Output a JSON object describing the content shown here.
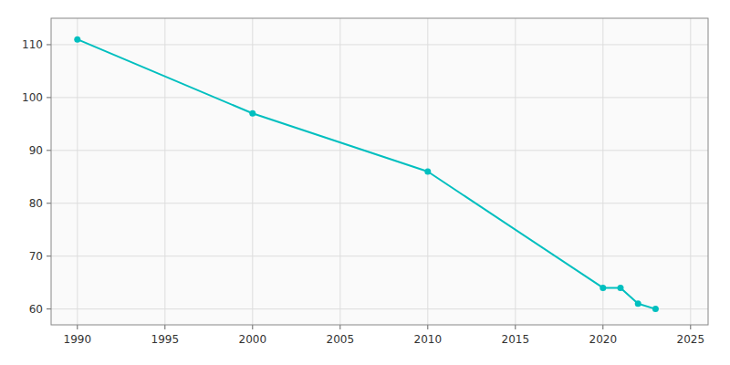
{
  "chart_data": {
    "type": "line",
    "x": [
      1990,
      2000,
      2010,
      2020,
      2021,
      2022,
      2023
    ],
    "values": [
      111,
      97,
      86,
      64,
      64,
      61,
      60
    ],
    "color": "#00BFBF",
    "marker": "circle",
    "xlim": [
      1988.5,
      2026
    ],
    "ylim": [
      57,
      115
    ],
    "xticks": [
      1990,
      1995,
      2000,
      2005,
      2010,
      2015,
      2020,
      2025
    ],
    "yticks": [
      60,
      70,
      80,
      90,
      100,
      110
    ],
    "grid": true
  }
}
